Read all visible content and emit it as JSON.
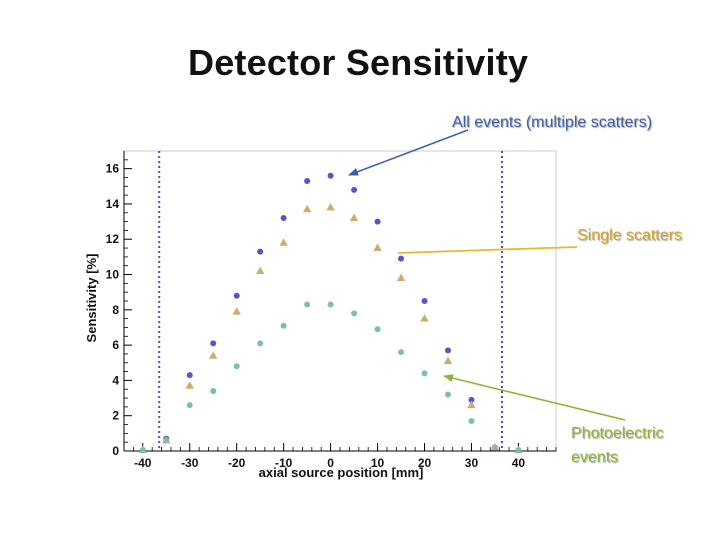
{
  "slide": {
    "title": "Detector Sensitivity"
  },
  "annotations": {
    "all_events": "All events (multiple scatters)",
    "single_scatters": "Single scatters",
    "photoelectric": "Photoelectric events"
  },
  "colors": {
    "all_events": "#5555cc",
    "single_scatters": "#ccad6e",
    "photoelectric": "#7fbfa8",
    "all_events_label": "#3f5fa8",
    "single_scatters_label": "#d9a520",
    "photoelectric_label": "#8bb630",
    "fov_lines": "#4d4dcc"
  },
  "chart_data": {
    "type": "scatter",
    "title": "",
    "xlabel": "axial source position [mm]",
    "ylabel": "Sensitivity [%]",
    "xlim": [
      -44,
      48
    ],
    "ylim": [
      0,
      17
    ],
    "x_ticks": [
      -40,
      -30,
      -20,
      -10,
      0,
      10,
      20,
      30,
      40
    ],
    "y_ticks": [
      0,
      2,
      4,
      6,
      8,
      10,
      12,
      14,
      16
    ],
    "grid": false,
    "vertical_lines": [
      -36.5,
      36.5
    ],
    "series": [
      {
        "name": "All events (multiple scatters)",
        "marker": "circle",
        "x": [
          -40,
          -35,
          -30,
          -25,
          -20,
          -15,
          -10,
          -5,
          0,
          5,
          10,
          15,
          20,
          25,
          30,
          35,
          40
        ],
        "y": [
          0.05,
          0.7,
          4.3,
          6.1,
          8.8,
          11.3,
          13.2,
          15.3,
          15.6,
          14.8,
          13.0,
          10.9,
          8.5,
          5.7,
          2.9,
          0.2,
          0.05
        ]
      },
      {
        "name": "Single scatters",
        "marker": "triangle",
        "x": [
          -40,
          -35,
          -30,
          -25,
          -20,
          -15,
          -10,
          -5,
          0,
          5,
          10,
          15,
          20,
          25,
          30,
          35,
          40
        ],
        "y": [
          0.05,
          0.6,
          3.7,
          5.4,
          7.9,
          10.2,
          11.8,
          13.7,
          13.8,
          13.2,
          11.5,
          9.8,
          7.5,
          5.1,
          2.6,
          0.2,
          0.05
        ]
      },
      {
        "name": "Photoelectric events",
        "marker": "circle",
        "x": [
          -40,
          -35,
          -30,
          -25,
          -20,
          -15,
          -10,
          -5,
          0,
          5,
          10,
          15,
          20,
          25,
          30,
          35,
          40
        ],
        "y": [
          0.05,
          0.6,
          2.6,
          3.4,
          4.8,
          6.1,
          7.1,
          8.3,
          8.3,
          7.8,
          6.9,
          5.6,
          4.4,
          3.2,
          1.7,
          0.2,
          0.05
        ]
      }
    ]
  }
}
